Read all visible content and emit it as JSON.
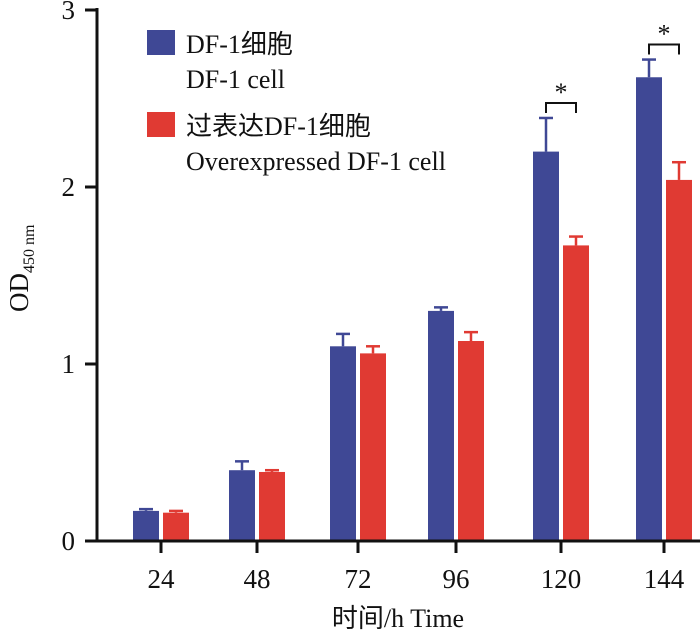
{
  "chart_data": {
    "type": "bar",
    "title": "",
    "xlabel": "时间/h Time",
    "ylabel": "OD",
    "ylabel_sub": "450 nm",
    "ylim": [
      0,
      3
    ],
    "yticks": [
      0,
      1,
      2,
      3
    ],
    "categories": [
      "24",
      "48",
      "72",
      "96",
      "120",
      "144"
    ],
    "series": [
      {
        "name": "DF-1细胞",
        "name_en": "DF-1 cell",
        "color": "#3f4895",
        "values": [
          0.17,
          0.4,
          1.1,
          1.3,
          2.2,
          2.62
        ],
        "errors": [
          0.01,
          0.05,
          0.07,
          0.02,
          0.19,
          0.1
        ]
      },
      {
        "name": "过表达DF-1细胞",
        "name_en": "Overexpressed DF-1 cell",
        "color": "#e03a33",
        "values": [
          0.16,
          0.39,
          1.06,
          1.13,
          1.67,
          2.04
        ],
        "errors": [
          0.01,
          0.01,
          0.04,
          0.05,
          0.05,
          0.1
        ]
      }
    ],
    "annotations": [
      {
        "category": "120",
        "text": "*"
      },
      {
        "category": "144",
        "text": "*"
      }
    ],
    "legend": "top-left",
    "grid": false
  }
}
